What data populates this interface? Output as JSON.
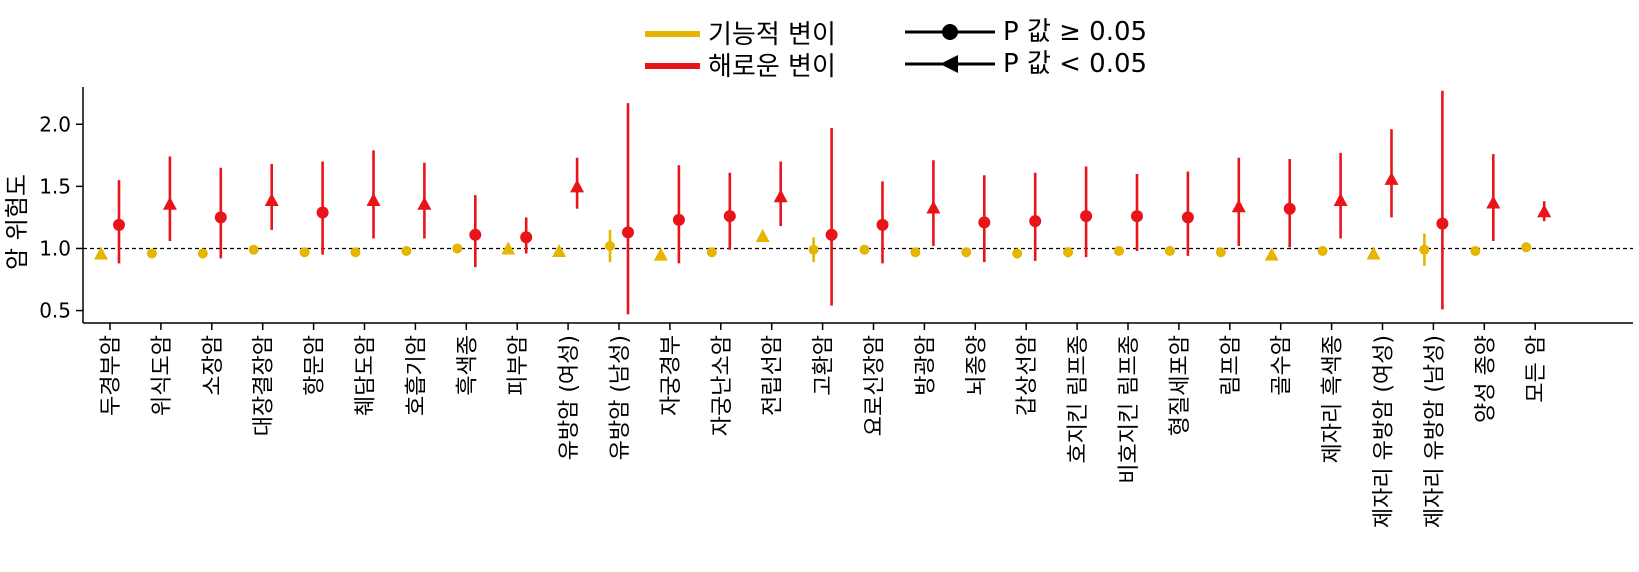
{
  "legend": {
    "functional": "기능적 변이",
    "harmful": "해로운 변이",
    "p_ge": "P 값 ≥ 0.05",
    "p_lt": "P 값 < 0.05",
    "colors": {
      "functional": "#E5B500",
      "harmful": "#E8141A"
    }
  },
  "chart_data": {
    "type": "scatter",
    "ylabel": "암 위험도",
    "ylim": [
      0.4,
      2.3
    ],
    "yticks": [
      0.5,
      1.0,
      1.5,
      2.0
    ],
    "reference_line": 1.0,
    "categories": [
      "두경부암",
      "위식도암",
      "소장암",
      "대장결장암",
      "항문암",
      "췌담도암",
      "호흡기암",
      "흑색종",
      "피부암",
      "유방암 (여성)",
      "유방암 (남성)",
      "자궁경부",
      "자궁난소암",
      "전립선암",
      "고환암",
      "요로신장암",
      "방광암",
      "뇌종양",
      "갑상선암",
      "호지킨 림프종",
      "비호지킨 림프종",
      "형질세포암",
      "림프암",
      "골수암",
      "제자리 흑색종",
      "제자리 유방암 (여성)",
      "제자리 유방암 (남성)",
      "양성 종양",
      "모든 암"
    ],
    "series": [
      {
        "name": "기능적 변이",
        "color": "#E5B500",
        "points": [
          {
            "est": 0.96,
            "lo": 0.93,
            "hi": 0.99,
            "sig": true
          },
          {
            "est": 0.96,
            "lo": 0.93,
            "hi": 0.99,
            "sig": false
          },
          {
            "est": 0.96,
            "lo": 0.92,
            "hi": 1.0,
            "sig": false
          },
          {
            "est": 0.99,
            "lo": 0.97,
            "hi": 1.01,
            "sig": false
          },
          {
            "est": 0.97,
            "lo": 0.94,
            "hi": 1.0,
            "sig": false
          },
          {
            "est": 0.97,
            "lo": 0.95,
            "hi": 1.0,
            "sig": false
          },
          {
            "est": 0.98,
            "lo": 0.96,
            "hi": 1.0,
            "sig": false
          },
          {
            "est": 1.0,
            "lo": 0.97,
            "hi": 1.02,
            "sig": false
          },
          {
            "est": 1.0,
            "lo": 0.98,
            "hi": 1.02,
            "sig": true
          },
          {
            "est": 0.98,
            "lo": 0.96,
            "hi": 1.0,
            "sig": true
          },
          {
            "est": 1.02,
            "lo": 0.89,
            "hi": 1.15,
            "sig": false
          },
          {
            "est": 0.95,
            "lo": 0.92,
            "hi": 0.98,
            "sig": true
          },
          {
            "est": 0.97,
            "lo": 0.94,
            "hi": 1.0,
            "sig": false
          },
          {
            "est": 1.1,
            "lo": 1.07,
            "hi": 1.13,
            "sig": true
          },
          {
            "est": 0.99,
            "lo": 0.89,
            "hi": 1.09,
            "sig": false
          },
          {
            "est": 0.99,
            "lo": 0.96,
            "hi": 1.02,
            "sig": false
          },
          {
            "est": 0.97,
            "lo": 0.95,
            "hi": 1.0,
            "sig": false
          },
          {
            "est": 0.97,
            "lo": 0.93,
            "hi": 1.0,
            "sig": false
          },
          {
            "est": 0.96,
            "lo": 0.92,
            "hi": 0.99,
            "sig": false
          },
          {
            "est": 0.97,
            "lo": 0.93,
            "hi": 1.01,
            "sig": false
          },
          {
            "est": 0.98,
            "lo": 0.96,
            "hi": 1.01,
            "sig": false
          },
          {
            "est": 0.98,
            "lo": 0.95,
            "hi": 1.02,
            "sig": false
          },
          {
            "est": 0.97,
            "lo": 0.94,
            "hi": 1.0,
            "sig": false
          },
          {
            "est": 0.95,
            "lo": 0.92,
            "hi": 0.99,
            "sig": true
          },
          {
            "est": 0.98,
            "lo": 0.96,
            "hi": 1.01,
            "sig": false
          },
          {
            "est": 0.96,
            "lo": 0.93,
            "hi": 0.99,
            "sig": true
          },
          {
            "est": 0.99,
            "lo": 0.86,
            "hi": 1.12,
            "sig": false
          },
          {
            "est": 0.98,
            "lo": 0.95,
            "hi": 1.0,
            "sig": false
          },
          {
            "est": 1.01,
            "lo": 1.0,
            "hi": 1.02,
            "sig": false
          }
        ]
      },
      {
        "name": "해로운 변이",
        "color": "#E8141A",
        "points": [
          {
            "est": 1.19,
            "lo": 0.88,
            "hi": 1.55,
            "sig": false
          },
          {
            "est": 1.36,
            "lo": 1.06,
            "hi": 1.74,
            "sig": true
          },
          {
            "est": 1.25,
            "lo": 0.92,
            "hi": 1.65,
            "sig": false
          },
          {
            "est": 1.39,
            "lo": 1.15,
            "hi": 1.68,
            "sig": true
          },
          {
            "est": 1.29,
            "lo": 0.95,
            "hi": 1.7,
            "sig": false
          },
          {
            "est": 1.39,
            "lo": 1.08,
            "hi": 1.79,
            "sig": true
          },
          {
            "est": 1.36,
            "lo": 1.08,
            "hi": 1.69,
            "sig": true
          },
          {
            "est": 1.11,
            "lo": 0.85,
            "hi": 1.43,
            "sig": false
          },
          {
            "est": 1.09,
            "lo": 0.96,
            "hi": 1.25,
            "sig": false
          },
          {
            "est": 1.5,
            "lo": 1.32,
            "hi": 1.73,
            "sig": true
          },
          {
            "est": 1.13,
            "lo": 0.47,
            "hi": 2.17,
            "sig": false
          },
          {
            "est": 1.23,
            "lo": 0.88,
            "hi": 1.67,
            "sig": false
          },
          {
            "est": 1.26,
            "lo": 0.99,
            "hi": 1.61,
            "sig": false
          },
          {
            "est": 1.42,
            "lo": 1.18,
            "hi": 1.7,
            "sig": true
          },
          {
            "est": 1.11,
            "lo": 0.54,
            "hi": 1.97,
            "sig": false
          },
          {
            "est": 1.19,
            "lo": 0.88,
            "hi": 1.54,
            "sig": false
          },
          {
            "est": 1.33,
            "lo": 1.02,
            "hi": 1.71,
            "sig": true
          },
          {
            "est": 1.21,
            "lo": 0.89,
            "hi": 1.59,
            "sig": false
          },
          {
            "est": 1.22,
            "lo": 0.9,
            "hi": 1.61,
            "sig": false
          },
          {
            "est": 1.26,
            "lo": 0.93,
            "hi": 1.66,
            "sig": false
          },
          {
            "est": 1.26,
            "lo": 0.98,
            "hi": 1.6,
            "sig": false
          },
          {
            "est": 1.25,
            "lo": 0.94,
            "hi": 1.62,
            "sig": false
          },
          {
            "est": 1.34,
            "lo": 1.02,
            "hi": 1.73,
            "sig": true
          },
          {
            "est": 1.32,
            "lo": 1.01,
            "hi": 1.72,
            "sig": false
          },
          {
            "est": 1.39,
            "lo": 1.08,
            "hi": 1.77,
            "sig": true
          },
          {
            "est": 1.56,
            "lo": 1.25,
            "hi": 1.96,
            "sig": true
          },
          {
            "est": 1.2,
            "lo": 0.51,
            "hi": 2.27,
            "sig": false
          },
          {
            "est": 1.37,
            "lo": 1.06,
            "hi": 1.76,
            "sig": true
          },
          {
            "est": 1.3,
            "lo": 1.22,
            "hi": 1.38,
            "sig": true
          }
        ]
      }
    ]
  }
}
